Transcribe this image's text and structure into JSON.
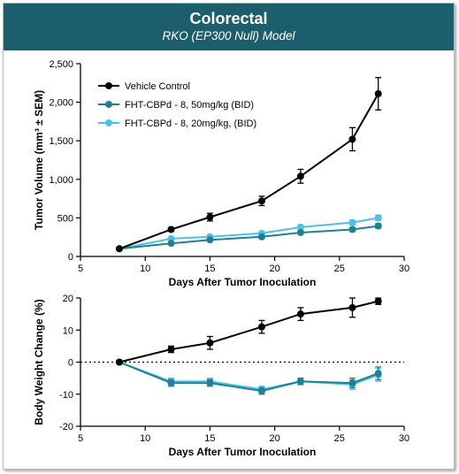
{
  "header": {
    "title": "Colorectal",
    "subtitle": "RKO (EP300 Null) Model"
  },
  "colors": {
    "vehicle": "#000000",
    "dose50": "#1f7f95",
    "dose20": "#4fc0e4",
    "banner": "#1c5e6c"
  },
  "chart_data": [
    {
      "type": "line",
      "xlabel": "Days After Tumor Inoculation",
      "ylabel": "Tumor Volume (mm³ ± SEM)",
      "xlim": [
        5,
        30
      ],
      "ylim": [
        0,
        2500
      ],
      "x_ticks": [
        "5",
        "10",
        "15",
        "20",
        "25",
        "30"
      ],
      "y_ticks": [
        "0",
        "500",
        "1,000",
        "1,500",
        "2,000",
        "2,500"
      ],
      "grid": false,
      "legend_position": "top-left",
      "series": [
        {
          "name": "Vehicle Control",
          "color_key": "vehicle",
          "x": [
            8,
            12,
            15,
            19,
            22,
            26,
            28
          ],
          "y": [
            100,
            350,
            510,
            720,
            1040,
            1520,
            2110
          ],
          "err": [
            10,
            25,
            50,
            60,
            90,
            150,
            210
          ]
        },
        {
          "name": "FHT-CBPd - 8, 50mg/kg (BID)",
          "color_key": "dose50",
          "x": [
            8,
            12,
            15,
            19,
            22,
            26,
            28
          ],
          "y": [
            100,
            170,
            215,
            255,
            310,
            350,
            395
          ],
          "err": [
            8,
            15,
            18,
            20,
            22,
            25,
            30
          ]
        },
        {
          "name": "FHT-CBPd - 8, 20mg/kg, (BID)",
          "color_key": "dose20",
          "x": [
            8,
            12,
            15,
            19,
            22,
            26,
            28
          ],
          "y": [
            100,
            230,
            255,
            300,
            380,
            440,
            500
          ],
          "err": [
            8,
            18,
            20,
            22,
            25,
            30,
            35
          ]
        }
      ]
    },
    {
      "type": "line",
      "xlabel": "Days After Tumor Inoculation",
      "ylabel": "Body Weight Change (%)",
      "xlim": [
        5,
        30
      ],
      "ylim": [
        -20,
        20
      ],
      "x_ticks": [
        "5",
        "10",
        "15",
        "20",
        "25",
        "30"
      ],
      "y_ticks": [
        "-20",
        "-10",
        "0",
        "10",
        "20"
      ],
      "grid": false,
      "reference_line_y": 0,
      "series": [
        {
          "name": "Vehicle Control",
          "color_key": "vehicle",
          "x": [
            8,
            12,
            15,
            19,
            22,
            26,
            28
          ],
          "y": [
            0,
            4,
            6,
            11,
            15,
            17,
            19
          ],
          "err": [
            0,
            1,
            2,
            2,
            2,
            3,
            1
          ]
        },
        {
          "name": "FHT-CBPd - 8, 50mg/kg (BID)",
          "color_key": "dose50",
          "x": [
            8,
            12,
            15,
            19,
            22,
            26,
            28
          ],
          "y": [
            0,
            -6.5,
            -6.5,
            -9,
            -6,
            -6.5,
            -3.5
          ],
          "err": [
            0,
            1,
            1,
            1,
            1,
            1.5,
            2
          ]
        },
        {
          "name": "FHT-CBPd - 8, 20mg/kg, (BID)",
          "color_key": "dose20",
          "x": [
            8,
            12,
            15,
            19,
            22,
            26,
            28
          ],
          "y": [
            0,
            -6,
            -6,
            -8.5,
            -6,
            -7,
            -4
          ],
          "err": [
            0,
            1,
            1,
            1,
            1,
            1.5,
            2
          ]
        }
      ]
    }
  ]
}
